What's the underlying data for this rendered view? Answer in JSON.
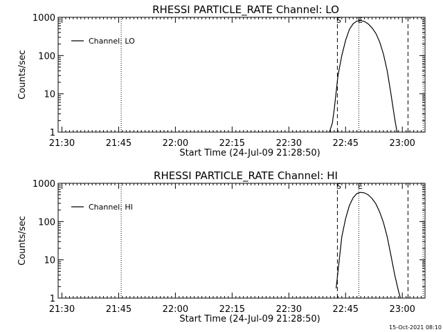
{
  "footer": {
    "timestamp": "15-Oct-2021 08:10"
  },
  "chart_data": [
    {
      "type": "line",
      "title": "RHESSI PARTICLE_RATE Channel: LO",
      "xlabel": "Start Time (24-Jul-09 21:28:50)",
      "ylabel": "Counts/sec",
      "yscale": "log",
      "ylim": [
        1,
        1000
      ],
      "xlim": [
        "21:29",
        "23:06"
      ],
      "x_ticks": [
        "21:30",
        "21:45",
        "22:00",
        "22:15",
        "22:30",
        "22:45",
        "23:00"
      ],
      "y_ticks": [
        "1",
        "10",
        "100",
        "1000"
      ],
      "legend": {
        "placement": "top-left",
        "entries": [
          "Channel: LO"
        ]
      },
      "series": [
        {
          "name": "Channel: LO",
          "points": [
            [
              "22:40:44",
              1
            ],
            [
              "22:41:30",
              1.7
            ],
            [
              "22:42:00",
              4
            ],
            [
              "22:43:00",
              30
            ],
            [
              "22:44:00",
              100
            ],
            [
              "22:45:00",
              250
            ],
            [
              "22:46:00",
              480
            ],
            [
              "22:47:00",
              680
            ],
            [
              "22:48:00",
              800
            ],
            [
              "22:49:00",
              820
            ],
            [
              "22:50:00",
              780
            ],
            [
              "22:51:00",
              670
            ],
            [
              "22:52:00",
              530
            ],
            [
              "22:53:00",
              380
            ],
            [
              "22:54:00",
              230
            ],
            [
              "22:55:00",
              110
            ],
            [
              "22:56:00",
              40
            ],
            [
              "22:57:00",
              10
            ],
            [
              "22:58:00",
              2.2
            ],
            [
              "22:58:36",
              1
            ]
          ]
        }
      ],
      "markers": [
        {
          "label": "S",
          "time": "22:42:50",
          "style": "dashed"
        },
        {
          "label": "E",
          "time": "22:48:30",
          "style": "dotted"
        }
      ],
      "vlines": [
        {
          "time": "21:45:40",
          "style": "dotted"
        },
        {
          "time": "23:01:30",
          "style": "dashed"
        },
        {
          "time": "23:05:30",
          "style": "dotted"
        }
      ]
    },
    {
      "type": "line",
      "title": "RHESSI PARTICLE_RATE Channel: HI",
      "xlabel": "Start Time (24-Jul-09 21:28:50)",
      "ylabel": "Counts/sec",
      "yscale": "log",
      "ylim": [
        1,
        1000
      ],
      "xlim": [
        "21:29",
        "23:06"
      ],
      "x_ticks": [
        "21:30",
        "21:45",
        "22:00",
        "22:15",
        "22:30",
        "22:45",
        "23:00"
      ],
      "y_ticks": [
        "1",
        "10",
        "100",
        "1000"
      ],
      "legend": {
        "placement": "top-left",
        "entries": [
          "Channel: HI"
        ]
      },
      "series": [
        {
          "name": "Channel: HI",
          "points": [
            [
              "22:42:30",
              1.8
            ],
            [
              "22:43:00",
              5
            ],
            [
              "22:44:00",
              40
            ],
            [
              "22:45:00",
              120
            ],
            [
              "22:46:00",
              260
            ],
            [
              "22:47:00",
              420
            ],
            [
              "22:48:00",
              540
            ],
            [
              "22:49:00",
              580
            ],
            [
              "22:50:00",
              560
            ],
            [
              "22:51:00",
              500
            ],
            [
              "22:52:00",
              400
            ],
            [
              "22:53:00",
              290
            ],
            [
              "22:54:00",
              180
            ],
            [
              "22:55:00",
              95
            ],
            [
              "22:56:00",
              40
            ],
            [
              "22:57:00",
              13
            ],
            [
              "22:58:00",
              4
            ],
            [
              "22:59:00",
              1.5
            ],
            [
              "22:59:30",
              1
            ]
          ]
        }
      ],
      "markers": [
        {
          "label": "S",
          "time": "22:42:50",
          "style": "dashed"
        },
        {
          "label": "E",
          "time": "22:48:30",
          "style": "dotted"
        }
      ],
      "vlines": [
        {
          "time": "21:45:40",
          "style": "dotted"
        },
        {
          "time": "23:01:30",
          "style": "dashed"
        },
        {
          "time": "23:05:30",
          "style": "dotted"
        }
      ]
    }
  ]
}
